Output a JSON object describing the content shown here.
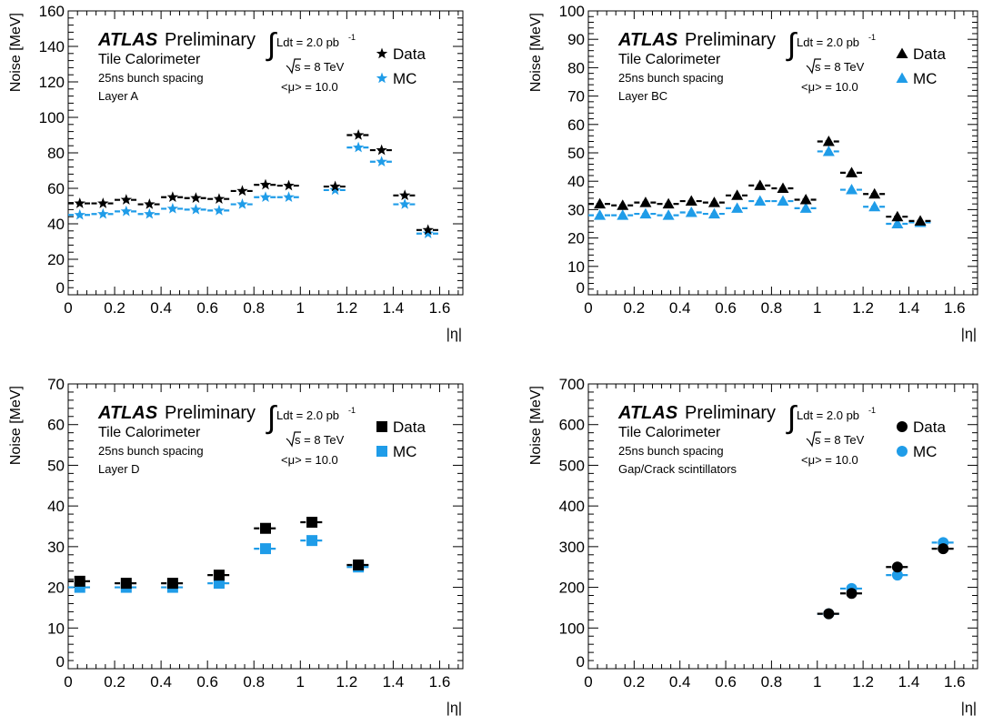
{
  "colors": {
    "data": "#000000",
    "mc": "#1f9ce8",
    "axis": "#000000"
  },
  "chart_data": [
    {
      "type": "scatter",
      "ylabel": "Noise [MeV]",
      "xlabel": "|η|",
      "xlim": [
        0,
        1.7
      ],
      "ylim": [
        0,
        160
      ],
      "xticks": [
        "0",
        "0.2",
        "0.4",
        "0.6",
        "0.8",
        "1",
        "1.2",
        "1.4",
        "1.6"
      ],
      "yticks": [
        "0",
        "20",
        "40",
        "60",
        "80",
        "100",
        "120",
        "140",
        "160"
      ],
      "marker": "star",
      "atlas": "ATLAS",
      "preliminary": "Preliminary",
      "detector": "Tile Calorimeter",
      "spacing": "25ns bunch spacing",
      "layer": "Layer A",
      "lumi": "Ldt = 2.0 pb",
      "lumi_exp": "-1",
      "sqrts_label": "s = 8 TeV",
      "mu": "<μ> = 10.0",
      "legend": "top-right",
      "series": [
        {
          "name": "Data",
          "color": "#000000",
          "x": [
            0.05,
            0.15,
            0.25,
            0.35,
            0.45,
            0.55,
            0.65,
            0.75,
            0.85,
            0.95,
            1.15,
            1.25,
            1.35,
            1.45,
            1.55
          ],
          "y": [
            51.5,
            51.5,
            53.5,
            51.0,
            55.0,
            54.5,
            54.0,
            58.5,
            62.0,
            61.5,
            61.0,
            90.0,
            81.5,
            56.0,
            36.5
          ]
        },
        {
          "name": "MC",
          "color": "#1f9ce8",
          "x": [
            0.05,
            0.15,
            0.25,
            0.35,
            0.45,
            0.55,
            0.65,
            0.75,
            0.85,
            0.95,
            1.15,
            1.25,
            1.35,
            1.45,
            1.55
          ],
          "y": [
            45.0,
            45.5,
            47.0,
            45.5,
            48.5,
            48.0,
            47.5,
            51.0,
            55.0,
            55.0,
            59.0,
            83.0,
            75.0,
            51.0,
            34.5
          ]
        }
      ]
    },
    {
      "type": "scatter",
      "ylabel": "Noise [MeV]",
      "xlabel": "|η|",
      "xlim": [
        0,
        1.7
      ],
      "ylim": [
        0,
        100
      ],
      "xticks": [
        "0",
        "0.2",
        "0.4",
        "0.6",
        "0.8",
        "1",
        "1.2",
        "1.4",
        "1.6"
      ],
      "yticks": [
        "0",
        "10",
        "20",
        "30",
        "40",
        "50",
        "60",
        "70",
        "80",
        "90",
        "100"
      ],
      "marker": "triangle",
      "atlas": "ATLAS",
      "preliminary": "Preliminary",
      "detector": "Tile Calorimeter",
      "spacing": "25ns bunch spacing",
      "layer": "Layer BC",
      "lumi": "Ldt = 2.0 pb",
      "lumi_exp": "-1",
      "sqrts_label": "s = 8 TeV",
      "mu": "<μ> = 10.0",
      "legend": "top-right",
      "series": [
        {
          "name": "Data",
          "color": "#000000",
          "x": [
            0.05,
            0.15,
            0.25,
            0.35,
            0.45,
            0.55,
            0.65,
            0.75,
            0.85,
            0.95,
            1.05,
            1.15,
            1.25,
            1.35,
            1.45
          ],
          "y": [
            32.0,
            31.5,
            32.5,
            32.0,
            33.0,
            32.5,
            35.0,
            38.5,
            37.5,
            33.5,
            54.0,
            43.0,
            35.5,
            27.5,
            26.0
          ]
        },
        {
          "name": "MC",
          "color": "#1f9ce8",
          "x": [
            0.05,
            0.15,
            0.25,
            0.35,
            0.45,
            0.55,
            0.65,
            0.75,
            0.85,
            0.95,
            1.05,
            1.15,
            1.25,
            1.35,
            1.45
          ],
          "y": [
            28.0,
            28.0,
            28.5,
            28.0,
            29.0,
            28.5,
            30.5,
            33.0,
            33.0,
            30.5,
            50.5,
            37.0,
            31.0,
            25.0,
            25.5
          ]
        }
      ]
    },
    {
      "type": "scatter",
      "ylabel": "Noise [MeV]",
      "xlabel": "|η|",
      "xlim": [
        0,
        1.7
      ],
      "ylim": [
        0,
        70
      ],
      "xticks": [
        "0",
        "0.2",
        "0.4",
        "0.6",
        "0.8",
        "1",
        "1.2",
        "1.4",
        "1.6"
      ],
      "yticks": [
        "0",
        "10",
        "20",
        "30",
        "40",
        "50",
        "60",
        "70"
      ],
      "marker": "square",
      "atlas": "ATLAS",
      "preliminary": "Preliminary",
      "detector": "Tile Calorimeter",
      "spacing": "25ns bunch spacing",
      "layer": "Layer D",
      "lumi": "Ldt = 2.0 pb",
      "lumi_exp": "-1",
      "sqrts_label": "s = 8 TeV",
      "mu": "<μ> = 10.0",
      "legend": "top-right",
      "series": [
        {
          "name": "Data",
          "color": "#000000",
          "x": [
            0.05,
            0.25,
            0.45,
            0.65,
            0.85,
            1.05,
            1.25
          ],
          "y": [
            21.5,
            21.0,
            21.0,
            23.0,
            34.5,
            36.0,
            25.5
          ]
        },
        {
          "name": "MC",
          "color": "#1f9ce8",
          "x": [
            0.05,
            0.25,
            0.45,
            0.65,
            0.85,
            1.05,
            1.25
          ],
          "y": [
            20.0,
            20.0,
            20.0,
            21.0,
            29.5,
            31.5,
            25.0
          ]
        }
      ]
    },
    {
      "type": "scatter",
      "ylabel": "Noise [MeV]",
      "xlabel": "|η|",
      "xlim": [
        0,
        1.7
      ],
      "ylim": [
        0,
        700
      ],
      "xticks": [
        "0",
        "0.2",
        "0.4",
        "0.6",
        "0.8",
        "1",
        "1.2",
        "1.4",
        "1.6"
      ],
      "yticks": [
        "0",
        "100",
        "200",
        "300",
        "400",
        "500",
        "600",
        "700"
      ],
      "marker": "circle",
      "atlas": "ATLAS",
      "preliminary": "Preliminary",
      "detector": "Tile Calorimeter",
      "spacing": "25ns bunch spacing",
      "layer": "Gap/Crack scintillators",
      "lumi": "Ldt = 2.0 pb",
      "lumi_exp": "-1",
      "sqrts_label": "s = 8 TeV",
      "mu": "<μ> = 10.0",
      "legend": "top-right",
      "series": [
        {
          "name": "Data",
          "color": "#000000",
          "x": [
            1.05,
            1.15,
            1.35,
            1.55
          ],
          "y": [
            135,
            185,
            250,
            295
          ]
        },
        {
          "name": "MC",
          "color": "#1f9ce8",
          "x": [
            1.05,
            1.15,
            1.35,
            1.55
          ],
          "y": [
            135,
            197,
            230,
            310
          ]
        }
      ]
    }
  ]
}
